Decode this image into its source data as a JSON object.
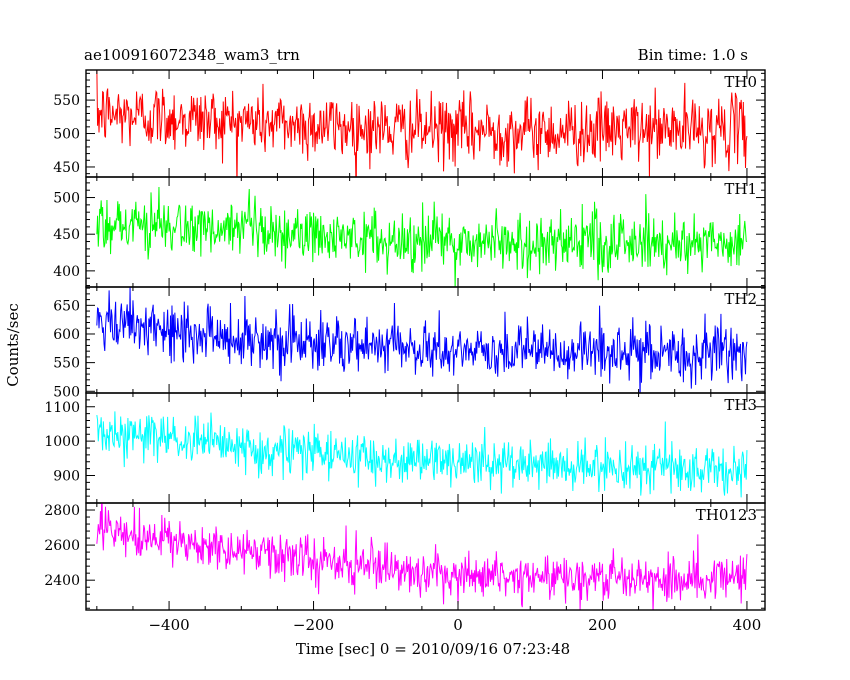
{
  "header": {
    "title": "ae100916072348_wam3_trn",
    "bin_time": "Bin time: 1.0 s"
  },
  "chart_data": {
    "type": "line",
    "title": "ae100916072348_wam3_trn",
    "xlabel": "Time [sec] 0 = 2010/09/16 07:23:48",
    "ylabel": "Counts/sec",
    "xlim": [
      -515,
      425
    ],
    "x_ticks": [
      -400,
      -200,
      0,
      200,
      400
    ],
    "x_tick_labels": [
      "−400",
      "−200",
      "0",
      "200",
      "400"
    ],
    "x_range_data": [
      -500,
      400
    ],
    "bin_time_s": 1.0,
    "panels": [
      {
        "name": "TH0",
        "color": "#ff0000",
        "ylim": [
          435,
          595
        ],
        "y_ticks": [
          450,
          500,
          550
        ],
        "trend": {
          "x": [
            -500,
            -300,
            -100,
            100,
            400
          ],
          "y": [
            530,
            518,
            507,
            503,
            507
          ]
        },
        "noise_sd": 25
      },
      {
        "name": "TH1",
        "color": "#00ff00",
        "ylim": [
          378,
          528
        ],
        "y_ticks": [
          400,
          450,
          500
        ],
        "trend": {
          "x": [
            -500,
            -300,
            -100,
            100,
            400
          ],
          "y": [
            468,
            452,
            442,
            438,
            440
          ]
        },
        "noise_sd": 20
      },
      {
        "name": "TH2",
        "color": "#0000ff",
        "ylim": [
          497,
          682
        ],
        "y_ticks": [
          500,
          550,
          600,
          650
        ],
        "trend": {
          "x": [
            -500,
            -300,
            -100,
            100,
            400
          ],
          "y": [
            615,
            595,
            575,
            568,
            565
          ]
        },
        "noise_sd": 25
      },
      {
        "name": "TH3",
        "color": "#00ffff",
        "ylim": [
          820,
          1140
        ],
        "y_ticks": [
          900,
          1000,
          1100
        ],
        "trend": {
          "x": [
            -500,
            -300,
            -100,
            100,
            400
          ],
          "y": [
            1030,
            980,
            950,
            930,
            915
          ]
        },
        "noise_sd": 35
      },
      {
        "name": "TH0123",
        "color": "#ff00ff",
        "ylim": [
          2230,
          2840
        ],
        "y_ticks": [
          2400,
          2600,
          2800
        ],
        "trend": {
          "x": [
            -500,
            -300,
            -100,
            100,
            400
          ],
          "y": [
            2680,
            2560,
            2460,
            2420,
            2415
          ]
        },
        "noise_sd": 65
      }
    ]
  }
}
